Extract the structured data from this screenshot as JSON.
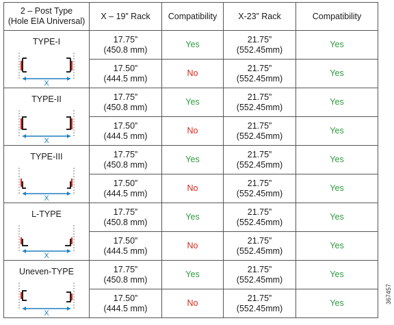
{
  "headers": {
    "post_type": "2 – Post Type",
    "post_type_sub": "(Hole EIA Universal)",
    "rack19": "X – 19” Rack",
    "compat1": "Compatibility",
    "rack23": "X-23” Rack",
    "compat2": "Compatibility"
  },
  "types": [
    {
      "name": "TYPE-I",
      "x_label": "X",
      "rows": [
        {
          "r19_a": "17.75”",
          "r19_b": "(450.8 mm)",
          "c1": "Yes",
          "r23_a": "21.75”",
          "r23_b": "(552.45mm)",
          "c2": "Yes"
        },
        {
          "r19_a": "17.50”",
          "r19_b": "(444.5 mm)",
          "c1": "No",
          "r23_a": "21.75”",
          "r23_b": "(552.45mm)",
          "c2": "Yes"
        }
      ]
    },
    {
      "name": "TYPE-II",
      "x_label": "X",
      "rows": [
        {
          "r19_a": "17.75”",
          "r19_b": "(450.8 mm)",
          "c1": "Yes",
          "r23_a": "21.75”",
          "r23_b": "(552.45mm)",
          "c2": "Yes"
        },
        {
          "r19_a": "17.50”",
          "r19_b": "(444.5 mm)",
          "c1": "No",
          "r23_a": "21.75”",
          "r23_b": "(552.45mm)",
          "c2": "Yes"
        }
      ]
    },
    {
      "name": "TYPE-III",
      "x_label": "X",
      "rows": [
        {
          "r19_a": "17.75”",
          "r19_b": "(450.8 mm)",
          "c1": "Yes",
          "r23_a": "21.75”",
          "r23_b": "(552.45mm)",
          "c2": "Yes"
        },
        {
          "r19_a": "17.50”",
          "r19_b": "(444.5 mm)",
          "c1": "No",
          "r23_a": "21.75”",
          "r23_b": "(552.45mm)",
          "c2": "Yes"
        }
      ]
    },
    {
      "name": "L-TYPE",
      "x_label": "X",
      "rows": [
        {
          "r19_a": "17.75”",
          "r19_b": "(450.8 mm)",
          "c1": "Yes",
          "r23_a": "21.75”",
          "r23_b": "(552.45mm)",
          "c2": "Yes"
        },
        {
          "r19_a": "17.50”",
          "r19_b": "(444.5 mm)",
          "c1": "No",
          "r23_a": "21.75”",
          "r23_b": "(552.45mm)",
          "c2": "Yes"
        }
      ]
    },
    {
      "name": "Uneven-TYPE",
      "x_label": "X",
      "rows": [
        {
          "r19_a": "17.75”",
          "r19_b": "(450.8 mm)",
          "c1": "Yes",
          "r23_a": "21.75”",
          "r23_b": "(552.45mm)",
          "c2": "Yes"
        },
        {
          "r19_a": "17.50”",
          "r19_b": "(444.5 mm)",
          "c1": "No",
          "r23_a": "21.75”",
          "r23_b": "(552.45mm)",
          "c2": "Yes"
        }
      ]
    }
  ],
  "figure_number": "367457",
  "colors": {
    "yes": "#2e9b3e",
    "no": "#d2281c",
    "dimension_line": "#1f7fbf",
    "post_red": "#d2281c"
  }
}
